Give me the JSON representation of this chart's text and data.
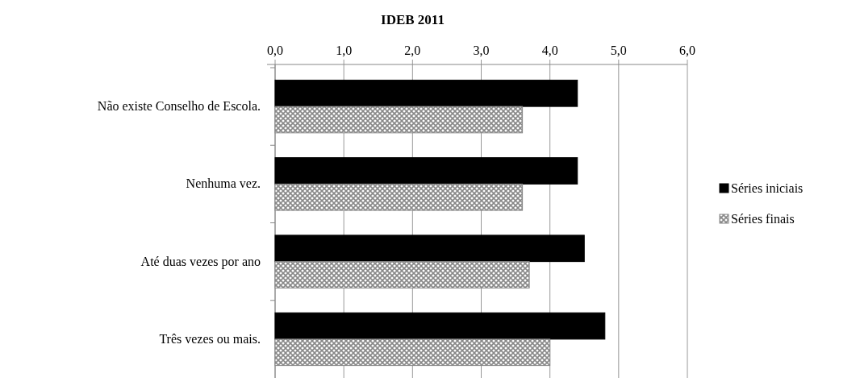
{
  "chart_data": {
    "type": "bar",
    "orientation": "horizontal",
    "title": "IDEB 2011",
    "categories": [
      "Não existe Conselho de Escola.",
      "Nenhuma vez.",
      "Até duas vezes por ano",
      "Três vezes ou mais."
    ],
    "series": [
      {
        "name": "Séries iniciais",
        "color": "#000000",
        "values": [
          4.4,
          4.4,
          4.5,
          4.8
        ]
      },
      {
        "name": "Séries finais",
        "color": "#888888",
        "values": [
          3.6,
          3.6,
          3.7,
          4.0
        ]
      }
    ],
    "xlim": [
      0,
      6
    ],
    "xticks": [
      {
        "value": 0,
        "label": "0,0"
      },
      {
        "value": 1,
        "label": "1,0"
      },
      {
        "value": 2,
        "label": "2,0"
      },
      {
        "value": 3,
        "label": "3,0"
      },
      {
        "value": 4,
        "label": "4,0"
      },
      {
        "value": 5,
        "label": "5,0"
      },
      {
        "value": 6,
        "label": "6,0"
      }
    ],
    "grid": "x",
    "legend": "right"
  }
}
